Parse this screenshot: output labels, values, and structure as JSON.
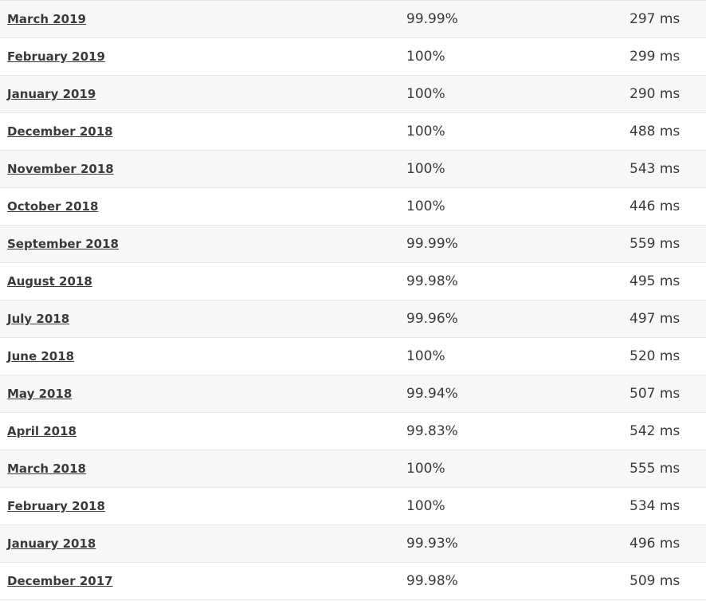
{
  "rows": [
    {
      "month": "March 2019",
      "uptime": "99.99%",
      "response": "297 ms"
    },
    {
      "month": "February 2019",
      "uptime": "100%",
      "response": "299 ms"
    },
    {
      "month": "January 2019",
      "uptime": "100%",
      "response": "290 ms"
    },
    {
      "month": "December 2018",
      "uptime": "100%",
      "response": "488 ms"
    },
    {
      "month": "November 2018",
      "uptime": "100%",
      "response": "543 ms"
    },
    {
      "month": "October 2018",
      "uptime": "100%",
      "response": "446 ms"
    },
    {
      "month": "September 2018",
      "uptime": "99.99%",
      "response": "559 ms"
    },
    {
      "month": "August 2018",
      "uptime": "99.98%",
      "response": "495 ms"
    },
    {
      "month": "July 2018",
      "uptime": "99.96%",
      "response": "497 ms"
    },
    {
      "month": "June 2018",
      "uptime": "100%",
      "response": "520 ms"
    },
    {
      "month": "May 2018",
      "uptime": "99.94%",
      "response": "507 ms"
    },
    {
      "month": "April 2018",
      "uptime": "99.83%",
      "response": "542 ms"
    },
    {
      "month": "March 2018",
      "uptime": "100%",
      "response": "555 ms"
    },
    {
      "month": "February 2018",
      "uptime": "100%",
      "response": "534 ms"
    },
    {
      "month": "January 2018",
      "uptime": "99.93%",
      "response": "496 ms"
    },
    {
      "month": "December 2017",
      "uptime": "99.98%",
      "response": "509 ms"
    }
  ]
}
